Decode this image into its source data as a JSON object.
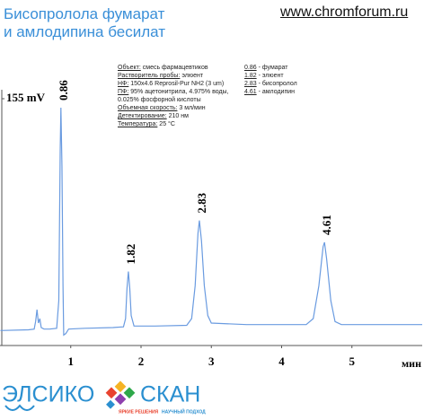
{
  "header": {
    "title_lines": [
      "Бисопролола фумарат",
      "и амлодипина бесилат"
    ],
    "url": "www.chromforum.ru"
  },
  "chart_data": {
    "type": "line",
    "color": "#6a9be0",
    "x": [
      0,
      0.4,
      0.48,
      0.5,
      0.52,
      0.54,
      0.56,
      0.58,
      0.62,
      0.7,
      0.8,
      0.83,
      0.85,
      0.86,
      0.875,
      0.89,
      0.9,
      0.93,
      0.97,
      1.2,
      1.6,
      1.75,
      1.78,
      1.8,
      1.82,
      1.84,
      1.86,
      1.9,
      2.2,
      2.65,
      2.72,
      2.77,
      2.81,
      2.83,
      2.86,
      2.9,
      2.95,
      3.0,
      3.5,
      4.35,
      4.45,
      4.53,
      4.59,
      4.61,
      4.64,
      4.7,
      4.76,
      4.85,
      5.5,
      6
    ],
    "values": [
      0,
      0.5,
      1,
      6,
      14,
      5,
      8,
      2,
      1,
      1,
      1.5,
      20,
      120,
      149,
      110,
      30,
      -3,
      -2,
      1,
      1.5,
      2,
      2.5,
      8,
      28,
      39.5,
      28,
      10,
      3,
      3,
      3.5,
      8,
      30,
      65,
      73.6,
      60,
      30,
      10,
      5,
      4,
      4,
      8,
      30,
      56,
      59,
      48,
      20,
      6,
      4,
      4,
      4
    ],
    "xlim": [
      0,
      6
    ],
    "xticks": [
      1,
      2,
      3,
      4,
      5
    ],
    "x_label": "мин",
    "ylim": [
      -10,
      155
    ],
    "yticks": [
      {
        "value": 155,
        "label": "155 mV"
      }
    ],
    "peak_labels": [
      0.86,
      1.82,
      2.83,
      4.61
    ],
    "notes": [
      {
        "label": "Объект:",
        "text": "смесь фармацевтиков"
      },
      {
        "label": "Растворитель пробы:",
        "text": "элюент"
      },
      {
        "label": "НФ:",
        "text": "150x4.6 Reprosil-Pur NH2  (3 um)"
      },
      {
        "label": "ПФ:",
        "text": "95% ацетонитрила, 4.975% воды,"
      },
      {
        "label": "",
        "text": "0.025% фосфорной кислоты"
      },
      {
        "label": "Объемная скорость:",
        "text": "3 мл/мин"
      },
      {
        "label": "Детектирование:",
        "text": "210 нм"
      },
      {
        "label": "Температура:",
        "text": "25 °C"
      }
    ],
    "peak_legend": [
      {
        "rt": "0.86",
        "name": "- фумарат"
      },
      {
        "rt": "1.82",
        "name": "- элюент"
      },
      {
        "rt": "2.83",
        "name": "- бисопролол"
      },
      {
        "rt": "4.61",
        "name": "- амлодипин"
      }
    ]
  },
  "logo": {
    "left": "ЭЛСИКО",
    "right": "СКАН",
    "slogan_1": "ЯРКИЕ РЕШЕНИЯ",
    "slogan_2": "НАУЧНЫЙ ПОДХОД"
  }
}
